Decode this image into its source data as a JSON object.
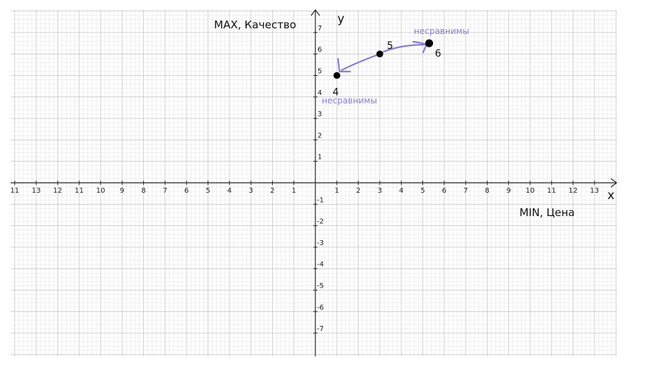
{
  "chart_data": {
    "type": "scatter",
    "title": "",
    "xlabel": "x",
    "ylabel": "y",
    "x_axis_caption": "MIN, Цена",
    "y_axis_caption": "MAX, Качество",
    "xlim": [
      -14,
      14
    ],
    "ylim": [
      -8,
      8
    ],
    "grid": true,
    "x_tick_labels_left": [
      "11",
      "13",
      "12",
      "11",
      "10",
      "9",
      "8",
      "7",
      "6",
      "5",
      "4",
      "3",
      "2",
      "1"
    ],
    "x_tick_labels_right": [
      "1",
      "2",
      "3",
      "4",
      "5",
      "6",
      "7",
      "8",
      "9",
      "10",
      "11",
      "12",
      "13"
    ],
    "y_tick_labels_positive": [
      "1",
      "2",
      "3",
      "4",
      "5",
      "6",
      "7"
    ],
    "y_tick_labels_negative": [
      "-1",
      "-2",
      "-3",
      "-4",
      "-5",
      "-6",
      "-7"
    ],
    "points": [
      {
        "label": "4",
        "x": 1,
        "y": 5
      },
      {
        "label": "5",
        "x": 3,
        "y": 6
      },
      {
        "label": "6",
        "x": 5.3,
        "y": 6.5
      }
    ],
    "annotations": [
      {
        "text": "несравнимы",
        "near": "4"
      },
      {
        "text": "несравнимы",
        "near": "6"
      }
    ],
    "colors": {
      "annotation": "#8a7fcc",
      "grid_minor": "#e6e6e6",
      "grid_major": "#c4c4c4",
      "axis": "#222222"
    }
  }
}
